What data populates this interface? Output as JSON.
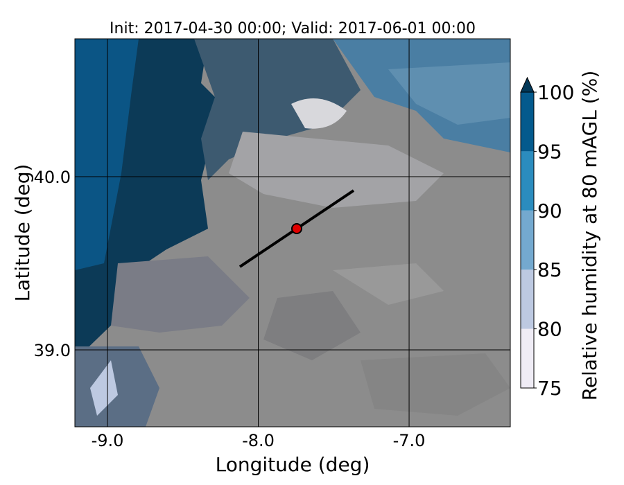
{
  "chart_data": {
    "type": "contour-map",
    "title": "Init: 2017-04-30 00:00; Valid: 2017-06-01 00:00",
    "xlabel": "Longitude (deg)",
    "ylabel": "Latitude (deg)",
    "xlim": [
      -9.216,
      -6.329
    ],
    "ylim": [
      38.556,
      40.796
    ],
    "xticks": [
      {
        "value": -9,
        "label": "-9.0"
      },
      {
        "value": -8,
        "label": "-8.0"
      },
      {
        "value": -7,
        "label": "-7.0"
      }
    ],
    "yticks": [
      {
        "value": 39,
        "label": "39.0"
      },
      {
        "value": 40,
        "label": "40.0"
      }
    ],
    "grid": true,
    "colorbar": {
      "label": "Relative humidity at 80 mAGL (%)",
      "levels": [
        75,
        80,
        85,
        90,
        95,
        100
      ],
      "colors": [
        "#efecf5",
        "#bdc9e1",
        "#74a9cf",
        "#2b8cbe",
        "#045a8d"
      ],
      "extend_color": "#023858"
    },
    "transect": {
      "lon": [
        -8.122,
        -7.368
      ],
      "lat": [
        39.48,
        39.92
      ],
      "color": "#000000"
    },
    "point": {
      "lon": -7.745,
      "lat": 39.7,
      "color": "#e00000"
    }
  }
}
